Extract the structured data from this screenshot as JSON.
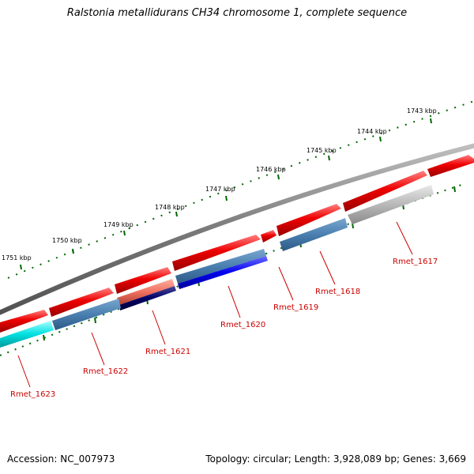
{
  "title": "Ralstonia metallidurans CH34 chromosome 1, complete sequence",
  "footer": {
    "accession": "Accession: NC_007973",
    "summary": "Topology: circular; Length: 3,928,089 bp; Genes: 3,669"
  },
  "scale": {
    "unit": "kbp",
    "labels": [
      "1743 kbp",
      "1744 kbp",
      "1745 kbp",
      "1746 kbp",
      "1747 kbp",
      "1748 kbp",
      "1749 kbp",
      "1750 kbp",
      "1751 kbp"
    ]
  },
  "genes": [
    {
      "name": "Rmet_1617",
      "color": "#b8b8b8"
    },
    {
      "name": "Rmet_1618",
      "color": "#4a7fb0"
    },
    {
      "name": "Rmet_1619",
      "color": "#cc0000"
    },
    {
      "name": "Rmet_1620",
      "color": "#0000ee"
    },
    {
      "name": "Rmet_1621",
      "color": "#000066"
    },
    {
      "name": "Rmet_1622",
      "color": "#4a7fb0"
    },
    {
      "name": "Rmet_1623",
      "color": "#00dddd"
    }
  ],
  "colors": {
    "backbone": "#808080",
    "forward_strand": "#ee0000",
    "ticks": "#006600",
    "labels": "#cc0000"
  }
}
